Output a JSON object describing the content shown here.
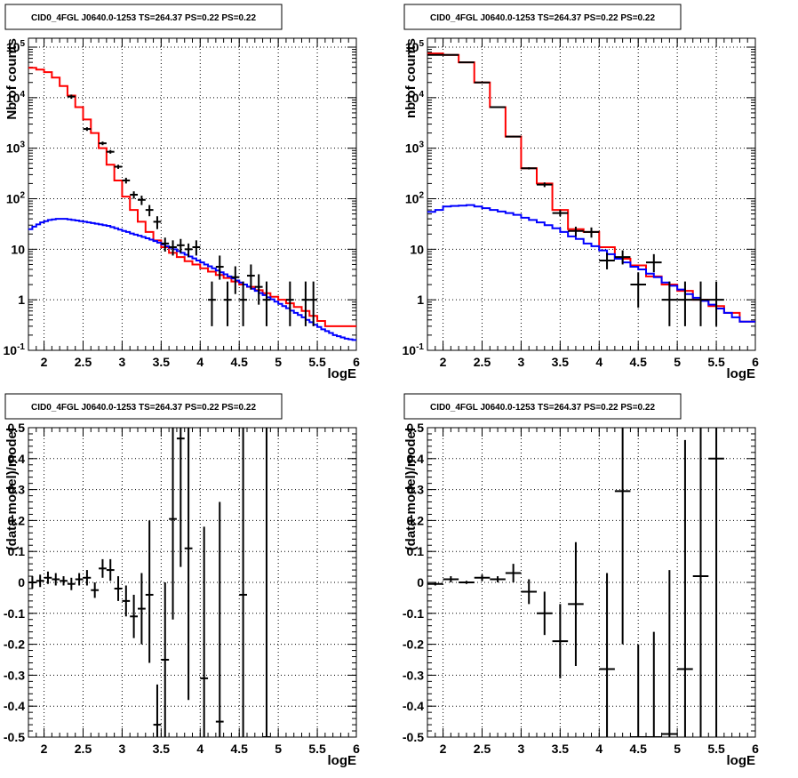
{
  "chart_data": [
    {
      "type": "line",
      "panel": "top-left",
      "title": "CID0_4FGL J0640.0-1253 TS=264.37 PS=0.22 PS=0.22",
      "xlabel": "logE",
      "ylabel": "Nb of counts",
      "xlim": [
        1.8,
        6.0
      ],
      "ylim": [
        0.1,
        150000
      ],
      "yscale": "log",
      "grid": true,
      "x_ticks": [
        "2",
        "2.5",
        "3",
        "3.5",
        "4",
        "4.5",
        "5",
        "5.5",
        "6"
      ],
      "y_ticks": [
        {
          "v": 0.1,
          "base": "10",
          "exp": "-1"
        },
        {
          "v": 1,
          "text": "1"
        },
        {
          "v": 10,
          "text": "10"
        },
        {
          "v": 100,
          "base": "10",
          "exp": "2"
        },
        {
          "v": 1000,
          "base": "10",
          "exp": "3"
        },
        {
          "v": 10000,
          "base": "10",
          "exp": "4"
        },
        {
          "v": 100000,
          "base": "10",
          "exp": "5"
        }
      ],
      "series": [
        {
          "color": "#ff0000",
          "style": "step",
          "x": [
            1.8,
            1.9,
            2.0,
            2.1,
            2.2,
            2.3,
            2.4,
            2.5,
            2.6,
            2.7,
            2.8,
            2.9,
            3.0,
            3.1,
            3.2,
            3.3,
            3.4,
            3.5,
            3.6,
            3.7,
            3.8,
            3.9,
            4.0,
            4.1,
            4.2,
            4.3,
            4.4,
            4.5,
            4.6,
            4.7,
            4.8,
            4.9,
            5.0,
            5.1,
            5.2,
            5.3,
            5.4,
            5.5,
            5.6
          ],
          "y": [
            39000,
            36000,
            32000,
            25000,
            17000,
            11000,
            6500,
            3700,
            2000,
            1000,
            470,
            230,
            110,
            60,
            35,
            22,
            15,
            11,
            8.5,
            7.0,
            5.8,
            5.0,
            4.2,
            3.6,
            3.1,
            2.7,
            2.3,
            2.0,
            1.8,
            1.55,
            1.35,
            1.15,
            1.0,
            0.85,
            0.72,
            0.6,
            0.48,
            0.38,
            0.3
          ]
        },
        {
          "color": "#0000ff",
          "style": "step",
          "x": [
            1.8,
            1.85,
            1.9,
            1.95,
            2.0,
            2.05,
            2.1,
            2.15,
            2.2,
            2.25,
            2.3,
            2.35,
            2.4,
            2.45,
            2.5,
            2.55,
            2.6,
            2.65,
            2.7,
            2.75,
            2.8,
            2.85,
            2.9,
            2.95,
            3.0,
            3.05,
            3.1,
            3.15,
            3.2,
            3.25,
            3.3,
            3.35,
            3.4,
            3.45,
            3.5,
            3.55,
            3.6,
            3.65,
            3.7,
            3.75,
            3.8,
            3.85,
            3.9,
            3.95,
            4.0,
            4.05,
            4.1,
            4.15,
            4.2,
            4.25,
            4.3,
            4.35,
            4.4,
            4.45,
            4.5,
            4.55,
            4.6,
            4.65,
            4.7,
            4.75,
            4.8,
            4.85,
            4.9,
            4.95,
            5.0,
            5.05,
            5.1,
            5.15,
            5.2,
            5.25,
            5.3,
            5.35,
            5.4,
            5.45,
            5.5,
            5.55,
            5.6,
            5.65,
            5.7,
            5.75,
            5.8,
            5.85,
            5.9,
            5.95
          ],
          "y": [
            25,
            28,
            31,
            34,
            36,
            38,
            39,
            40,
            40,
            40,
            39,
            38,
            37,
            36,
            35,
            34,
            33,
            32,
            31,
            30,
            29,
            27.5,
            26,
            24.5,
            23,
            22,
            20.5,
            19.5,
            18.5,
            17.5,
            16.5,
            15.5,
            14.5,
            13.5,
            12.5,
            11.5,
            10.7,
            10,
            9.2,
            8.5,
            7.8,
            7.2,
            6.6,
            6,
            5.5,
            5,
            4.6,
            4.2,
            3.8,
            3.5,
            3.2,
            2.9,
            2.65,
            2.4,
            2.2,
            2.0,
            1.82,
            1.65,
            1.5,
            1.36,
            1.24,
            1.12,
            1.02,
            0.92,
            0.83,
            0.75,
            0.68,
            0.61,
            0.55,
            0.5,
            0.45,
            0.4,
            0.36,
            0.32,
            0.29,
            0.26,
            0.24,
            0.22,
            0.2,
            0.19,
            0.18,
            0.17,
            0.165,
            0.16
          ]
        }
      ],
      "points": {
        "color": "#000000",
        "xerr": 0.05,
        "x": [
          2.35,
          2.55,
          2.75,
          2.85,
          2.95,
          3.05,
          3.15,
          3.25,
          3.35,
          3.45,
          3.55,
          3.65,
          3.75,
          3.85,
          3.95,
          4.15,
          4.25,
          4.35,
          4.45,
          4.55,
          4.65,
          4.75,
          4.85,
          5.15,
          5.35,
          5.45
        ],
        "y": [
          10500,
          2400,
          1250,
          850,
          430,
          230,
          120,
          95,
          60,
          35,
          13,
          11,
          12,
          10,
          11,
          1,
          4.5,
          1,
          2.8,
          1,
          3,
          1.8,
          1,
          1,
          1,
          1
        ],
        "ylo": [
          9500,
          2200,
          1150,
          780,
          390,
          200,
          100,
          75,
          45,
          25,
          9,
          7.5,
          8.5,
          7,
          7.5,
          0.3,
          2.5,
          0.3,
          1.3,
          0.3,
          1.6,
          0.8,
          0.3,
          0.3,
          0.3,
          0.3
        ],
        "yhi": [
          11500,
          2600,
          1350,
          920,
          470,
          260,
          140,
          115,
          75,
          45,
          17,
          15,
          16,
          13,
          15,
          2.3,
          7.5,
          2.3,
          4.6,
          2.3,
          5,
          3.2,
          2.3,
          2.3,
          2.3,
          2.3
        ]
      }
    },
    {
      "type": "line",
      "panel": "top-right",
      "title": "CID0_4FGL J0640.0-1253 TS=264.37 PS=0.22 PS=0.22",
      "xlabel": "logE",
      "ylabel": "nb of counts",
      "xlim": [
        1.8,
        6.0
      ],
      "ylim": [
        0.1,
        150000
      ],
      "yscale": "log",
      "grid": true,
      "x_ticks": [
        "2",
        "2.5",
        "3",
        "3.5",
        "4",
        "4.5",
        "5",
        "5.5",
        "6"
      ],
      "y_ticks": [
        {
          "v": 0.1,
          "base": "10",
          "exp": "-1"
        },
        {
          "v": 1,
          "text": "1"
        },
        {
          "v": 10,
          "text": "10"
        },
        {
          "v": 100,
          "base": "10",
          "exp": "2"
        },
        {
          "v": 1000,
          "base": "10",
          "exp": "3"
        },
        {
          "v": 10000,
          "base": "10",
          "exp": "4"
        },
        {
          "v": 100000,
          "base": "10",
          "exp": "5"
        }
      ],
      "series": [
        {
          "color": "#ff0000",
          "style": "step",
          "x": [
            1.8,
            2.0,
            2.2,
            2.4,
            2.6,
            2.8,
            3.0,
            3.2,
            3.4,
            3.6,
            3.8,
            4.0,
            4.2,
            4.4,
            4.6,
            4.8,
            5.0,
            5.2,
            5.4,
            5.6,
            5.8
          ],
          "y": [
            75000,
            70000,
            50000,
            20000,
            6500,
            1700,
            400,
            200,
            60,
            25,
            22,
            11,
            6.5,
            4.8,
            2.9,
            2.0,
            1.5,
            1.0,
            0.75,
            0.55,
            0.37
          ]
        },
        {
          "color": "#0000ff",
          "style": "step",
          "x": [
            1.8,
            1.9,
            2.0,
            2.1,
            2.2,
            2.3,
            2.4,
            2.5,
            2.6,
            2.7,
            2.8,
            2.9,
            3.0,
            3.1,
            3.2,
            3.3,
            3.4,
            3.5,
            3.6,
            3.7,
            3.8,
            3.9,
            4.0,
            4.1,
            4.2,
            4.3,
            4.4,
            4.5,
            4.6,
            4.7,
            4.8,
            4.9,
            5.0,
            5.1,
            5.2,
            5.3,
            5.4,
            5.5,
            5.6,
            5.7,
            5.8
          ],
          "y": [
            55,
            60,
            70,
            72,
            73,
            75,
            70,
            65,
            60,
            56,
            52,
            48,
            42,
            38,
            34,
            30,
            26,
            22,
            18,
            16,
            13,
            11.5,
            9.5,
            8,
            6.5,
            5.5,
            4.5,
            4.0,
            3.3,
            2.8,
            2.2,
            1.9,
            1.6,
            1.3,
            1.1,
            0.95,
            0.8,
            0.67,
            0.55,
            0.45,
            0.37
          ]
        }
      ],
      "points": {
        "color": "#000000",
        "xerr": 0.1,
        "x": [
          1.9,
          2.1,
          2.3,
          2.5,
          2.7,
          2.9,
          3.1,
          3.3,
          3.5,
          3.7,
          3.9,
          4.1,
          4.3,
          4.5,
          4.7,
          4.9,
          5.1,
          5.3,
          5.5
        ],
        "y": [
          70000,
          70000,
          50000,
          20000,
          6500,
          1700,
          400,
          190,
          52,
          23,
          22,
          6,
          7,
          2,
          5.5,
          1,
          1,
          1,
          1
        ],
        "ylo": [
          69000,
          69000,
          49000,
          19500,
          6300,
          1650,
          380,
          170,
          45,
          18,
          17,
          4,
          5,
          0.7,
          3.5,
          0.3,
          0.3,
          0.3,
          0.3
        ],
        "yhi": [
          71000,
          71000,
          51000,
          20500,
          6700,
          1750,
          420,
          210,
          60,
          28,
          27,
          8.5,
          9.5,
          3.5,
          8,
          2.3,
          2.3,
          2.3,
          2.3
        ]
      }
    },
    {
      "type": "scatter",
      "panel": "bottom-left",
      "title": "CID0_4FGL J0640.0-1253 TS=264.37 PS=0.22 PS=0.22",
      "xlabel": "logE",
      "ylabel": "(data-model)/model",
      "xlim": [
        1.8,
        6.0
      ],
      "ylim": [
        -0.5,
        0.5
      ],
      "yscale": "linear",
      "grid": true,
      "x_ticks": [
        "2",
        "2.5",
        "3",
        "3.5",
        "4",
        "4.5",
        "5",
        "5.5",
        "6"
      ],
      "y_ticks": [
        {
          "v": -0.5,
          "text": "-0.5"
        },
        {
          "v": -0.4,
          "text": "-0.4"
        },
        {
          "v": -0.3,
          "text": "-0.3"
        },
        {
          "v": -0.2,
          "text": "-0.2"
        },
        {
          "v": -0.1,
          "text": "-0.1"
        },
        {
          "v": 0,
          "text": "0"
        },
        {
          "v": 0.1,
          "text": "0.1"
        },
        {
          "v": 0.2,
          "text": "0.2"
        },
        {
          "v": 0.3,
          "text": "0.3"
        },
        {
          "v": 0.4,
          "text": "0.4"
        },
        {
          "v": 0.5,
          "text": "0.5"
        }
      ],
      "points": {
        "color": "#000000",
        "xerr": 0.05,
        "x": [
          1.85,
          1.95,
          2.05,
          2.15,
          2.25,
          2.35,
          2.45,
          2.55,
          2.65,
          2.75,
          2.85,
          2.95,
          3.05,
          3.15,
          3.25,
          3.35,
          3.45,
          3.55,
          3.65,
          3.75,
          3.85,
          4.05,
          4.25,
          4.55,
          4.85
        ],
        "y": [
          0.0,
          0.005,
          0.015,
          0.01,
          0.005,
          -0.005,
          0.01,
          0.015,
          -0.025,
          0.045,
          0.04,
          -0.02,
          -0.06,
          -0.11,
          -0.085,
          -0.04,
          -0.46,
          -0.25,
          0.205,
          0.465,
          0.11,
          -0.31,
          -0.45,
          -0.04,
          -0.5
        ],
        "ylo": [
          -0.02,
          -0.015,
          -0.005,
          -0.01,
          -0.01,
          -0.025,
          -0.01,
          -0.01,
          -0.05,
          0.015,
          0.005,
          -0.06,
          -0.11,
          -0.18,
          -0.2,
          -0.26,
          -0.51,
          -0.51,
          -0.12,
          0.05,
          -0.38,
          -0.51,
          -0.51,
          -0.51,
          -0.51
        ],
        "yhi": [
          0.02,
          0.025,
          0.035,
          0.03,
          0.02,
          0.015,
          0.03,
          0.04,
          0.0,
          0.075,
          0.075,
          0.02,
          -0.01,
          -0.04,
          0.03,
          0.2,
          -0.33,
          0.0,
          0.51,
          0.51,
          0.51,
          0.18,
          0.26,
          0.51,
          0.51
        ]
      }
    },
    {
      "type": "scatter",
      "panel": "bottom-right",
      "title": "CID0_4FGL J0640.0-1253 TS=264.37 PS=0.22 PS=0.22",
      "xlabel": "logE",
      "ylabel": "(data-model)/model",
      "xlim": [
        1.8,
        6.0
      ],
      "ylim": [
        -0.5,
        0.5
      ],
      "yscale": "linear",
      "grid": true,
      "x_ticks": [
        "2",
        "2.5",
        "3",
        "3.5",
        "4",
        "4.5",
        "5",
        "5.5",
        "6"
      ],
      "y_ticks": [
        {
          "v": -0.5,
          "text": "-0.5"
        },
        {
          "v": -0.4,
          "text": "-0.4"
        },
        {
          "v": -0.3,
          "text": "-0.3"
        },
        {
          "v": -0.2,
          "text": "-0.2"
        },
        {
          "v": -0.1,
          "text": "-0.1"
        },
        {
          "v": 0,
          "text": "0"
        },
        {
          "v": 0.1,
          "text": "0.1"
        },
        {
          "v": 0.2,
          "text": "0.2"
        },
        {
          "v": 0.3,
          "text": "0.3"
        },
        {
          "v": 0.4,
          "text": "0.4"
        },
        {
          "v": 0.5,
          "text": "0.5"
        }
      ],
      "points": {
        "color": "#000000",
        "xerr": 0.1,
        "x": [
          1.9,
          2.1,
          2.3,
          2.5,
          2.7,
          2.9,
          3.1,
          3.3,
          3.5,
          3.7,
          4.1,
          4.3,
          4.5,
          4.7,
          4.9,
          5.1,
          5.3,
          5.5
        ],
        "y": [
          -0.005,
          0.01,
          0.0,
          0.015,
          0.01,
          0.03,
          -0.03,
          -0.1,
          -0.19,
          -0.07,
          -0.28,
          0.295,
          -0.5,
          -0.5,
          -0.49,
          -0.28,
          0.02,
          0.4
        ],
        "ylo": [
          -0.01,
          0.0,
          -0.005,
          0.005,
          0.0,
          0.0,
          -0.07,
          -0.17,
          -0.31,
          -0.27,
          -0.51,
          -0.2,
          -0.51,
          -0.51,
          -0.51,
          -0.51,
          -0.51,
          -0.51
        ],
        "yhi": [
          0.0,
          0.02,
          0.005,
          0.025,
          0.02,
          0.06,
          0.01,
          -0.03,
          -0.07,
          0.13,
          0.03,
          0.51,
          -0.2,
          -0.16,
          0.04,
          0.46,
          0.51,
          0.51
        ]
      }
    }
  ]
}
